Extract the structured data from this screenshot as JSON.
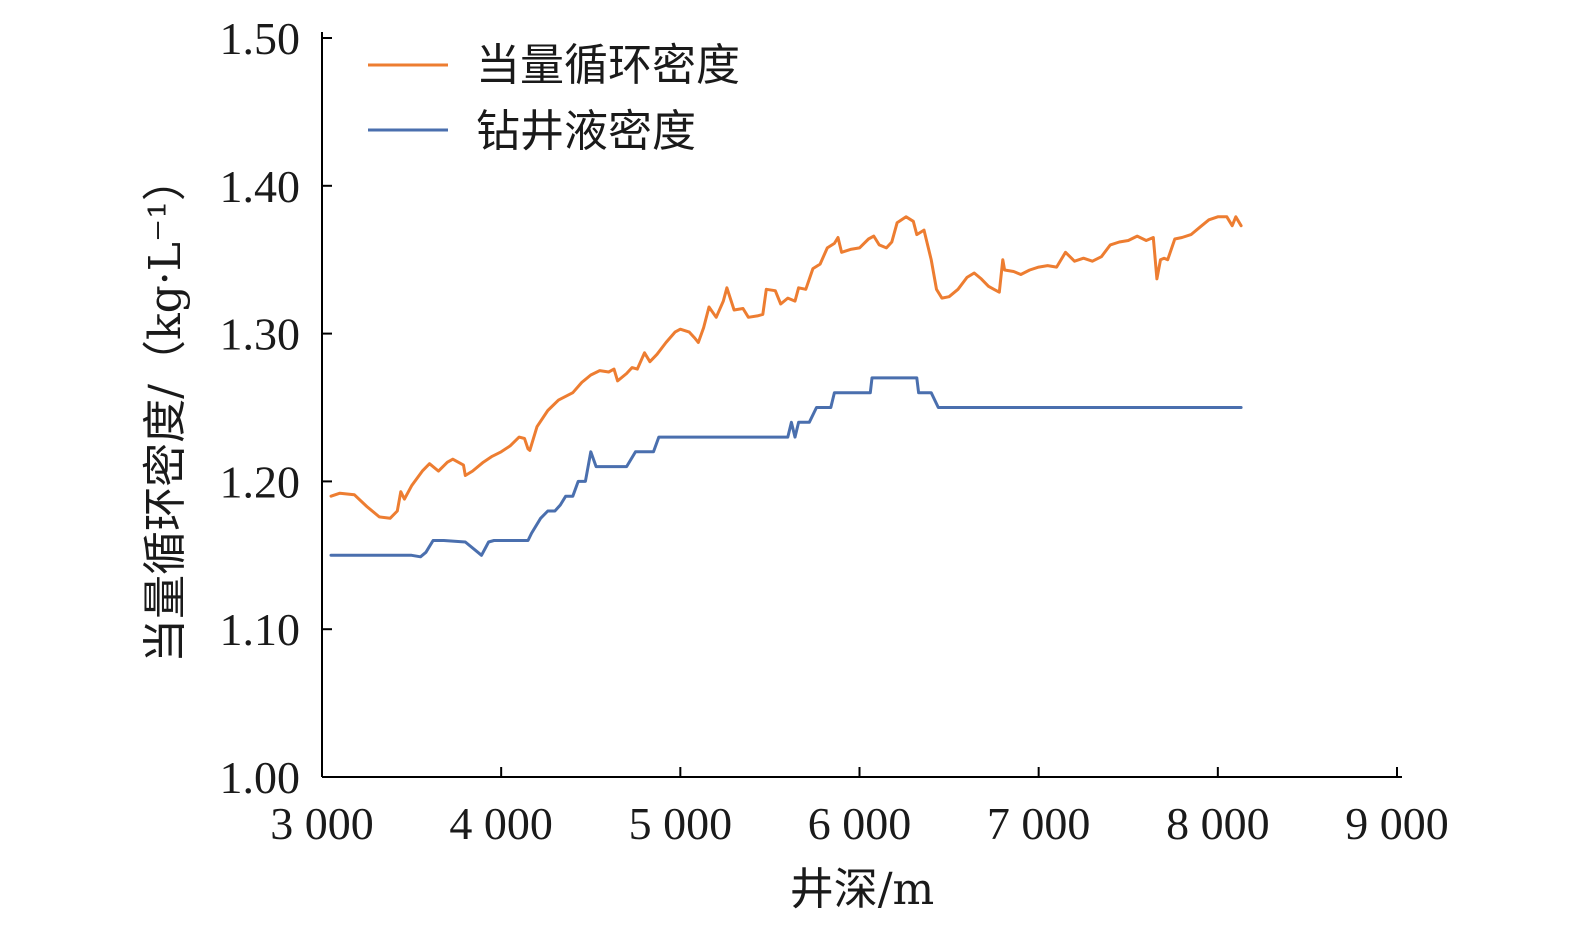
{
  "chart_data": {
    "type": "line",
    "xlabel": "井深/m",
    "ylabel": "当量循环密度/（kg·L⁻¹）",
    "xlim": [
      3000,
      9000
    ],
    "ylim": [
      1.0,
      1.5
    ],
    "x_ticks": [
      3000,
      4000,
      5000,
      6000,
      7000,
      8000,
      9000
    ],
    "x_tick_labels": [
      "3 000",
      "4 000",
      "5 000",
      "6 000",
      "7 000",
      "8 000",
      "9 000"
    ],
    "y_ticks": [
      1.0,
      1.1,
      1.2,
      1.3,
      1.4,
      1.5
    ],
    "y_tick_labels": [
      "1.00",
      "1.10",
      "1.20",
      "1.30",
      "1.40",
      "1.50"
    ],
    "grid": false,
    "legend_position": "top-left",
    "series": [
      {
        "name": "当量循环密度",
        "color": "#ED7D31",
        "points": [
          [
            3050,
            1.19
          ],
          [
            3100,
            1.192
          ],
          [
            3180,
            1.191
          ],
          [
            3250,
            1.183
          ],
          [
            3320,
            1.176
          ],
          [
            3380,
            1.175
          ],
          [
            3420,
            1.18
          ],
          [
            3440,
            1.193
          ],
          [
            3460,
            1.188
          ],
          [
            3500,
            1.197
          ],
          [
            3560,
            1.207
          ],
          [
            3600,
            1.212
          ],
          [
            3650,
            1.207
          ],
          [
            3700,
            1.213
          ],
          [
            3730,
            1.215
          ],
          [
            3790,
            1.211
          ],
          [
            3800,
            1.204
          ],
          [
            3840,
            1.207
          ],
          [
            3900,
            1.213
          ],
          [
            3950,
            1.217
          ],
          [
            4000,
            1.22
          ],
          [
            4050,
            1.224
          ],
          [
            4100,
            1.23
          ],
          [
            4130,
            1.229
          ],
          [
            4150,
            1.222
          ],
          [
            4160,
            1.221
          ],
          [
            4200,
            1.237
          ],
          [
            4260,
            1.248
          ],
          [
            4320,
            1.255
          ],
          [
            4400,
            1.26
          ],
          [
            4450,
            1.267
          ],
          [
            4500,
            1.272
          ],
          [
            4550,
            1.275
          ],
          [
            4600,
            1.274
          ],
          [
            4630,
            1.276
          ],
          [
            4650,
            1.268
          ],
          [
            4700,
            1.273
          ],
          [
            4730,
            1.277
          ],
          [
            4760,
            1.276
          ],
          [
            4800,
            1.287
          ],
          [
            4830,
            1.281
          ],
          [
            4870,
            1.286
          ],
          [
            4920,
            1.294
          ],
          [
            4970,
            1.301
          ],
          [
            5000,
            1.303
          ],
          [
            5050,
            1.301
          ],
          [
            5080,
            1.297
          ],
          [
            5100,
            1.294
          ],
          [
            5130,
            1.304
          ],
          [
            5160,
            1.318
          ],
          [
            5200,
            1.311
          ],
          [
            5240,
            1.322
          ],
          [
            5260,
            1.331
          ],
          [
            5300,
            1.316
          ],
          [
            5350,
            1.317
          ],
          [
            5380,
            1.311
          ],
          [
            5430,
            1.312
          ],
          [
            5460,
            1.313
          ],
          [
            5480,
            1.33
          ],
          [
            5530,
            1.329
          ],
          [
            5560,
            1.32
          ],
          [
            5600,
            1.324
          ],
          [
            5640,
            1.322
          ],
          [
            5660,
            1.331
          ],
          [
            5700,
            1.33
          ],
          [
            5740,
            1.344
          ],
          [
            5780,
            1.347
          ],
          [
            5820,
            1.358
          ],
          [
            5860,
            1.361
          ],
          [
            5880,
            1.365
          ],
          [
            5900,
            1.355
          ],
          [
            5950,
            1.357
          ],
          [
            6000,
            1.358
          ],
          [
            6050,
            1.364
          ],
          [
            6080,
            1.366
          ],
          [
            6110,
            1.36
          ],
          [
            6150,
            1.358
          ],
          [
            6180,
            1.362
          ],
          [
            6210,
            1.375
          ],
          [
            6260,
            1.379
          ],
          [
            6300,
            1.376
          ],
          [
            6320,
            1.367
          ],
          [
            6360,
            1.37
          ],
          [
            6400,
            1.35
          ],
          [
            6430,
            1.33
          ],
          [
            6460,
            1.324
          ],
          [
            6500,
            1.325
          ],
          [
            6550,
            1.33
          ],
          [
            6600,
            1.338
          ],
          [
            6640,
            1.341
          ],
          [
            6680,
            1.337
          ],
          [
            6720,
            1.332
          ],
          [
            6750,
            1.33
          ],
          [
            6780,
            1.328
          ],
          [
            6800,
            1.35
          ],
          [
            6810,
            1.343
          ],
          [
            6860,
            1.342
          ],
          [
            6900,
            1.34
          ],
          [
            6950,
            1.343
          ],
          [
            7000,
            1.345
          ],
          [
            7050,
            1.346
          ],
          [
            7100,
            1.345
          ],
          [
            7150,
            1.355
          ],
          [
            7200,
            1.349
          ],
          [
            7250,
            1.351
          ],
          [
            7300,
            1.349
          ],
          [
            7350,
            1.352
          ],
          [
            7400,
            1.36
          ],
          [
            7450,
            1.362
          ],
          [
            7500,
            1.363
          ],
          [
            7550,
            1.366
          ],
          [
            7600,
            1.363
          ],
          [
            7640,
            1.365
          ],
          [
            7660,
            1.337
          ],
          [
            7680,
            1.35
          ],
          [
            7700,
            1.351
          ],
          [
            7720,
            1.35
          ],
          [
            7760,
            1.364
          ],
          [
            7800,
            1.365
          ],
          [
            7850,
            1.367
          ],
          [
            7900,
            1.372
          ],
          [
            7950,
            1.377
          ],
          [
            8000,
            1.379
          ],
          [
            8050,
            1.379
          ],
          [
            8080,
            1.373
          ],
          [
            8100,
            1.379
          ],
          [
            8130,
            1.373
          ]
        ]
      },
      {
        "name": "钻井液密度",
        "color": "#4A6FAE",
        "points": [
          [
            3050,
            1.15
          ],
          [
            3300,
            1.15
          ],
          [
            3500,
            1.15
          ],
          [
            3550,
            1.149
          ],
          [
            3580,
            1.152
          ],
          [
            3620,
            1.16
          ],
          [
            3680,
            1.16
          ],
          [
            3800,
            1.159
          ],
          [
            3870,
            1.152
          ],
          [
            3890,
            1.15
          ],
          [
            3930,
            1.159
          ],
          [
            3960,
            1.16
          ],
          [
            4000,
            1.16
          ],
          [
            4150,
            1.16
          ],
          [
            4170,
            1.165
          ],
          [
            4220,
            1.175
          ],
          [
            4260,
            1.18
          ],
          [
            4300,
            1.18
          ],
          [
            4330,
            1.184
          ],
          [
            4360,
            1.19
          ],
          [
            4400,
            1.19
          ],
          [
            4430,
            1.2
          ],
          [
            4470,
            1.2
          ],
          [
            4500,
            1.22
          ],
          [
            4530,
            1.21
          ],
          [
            4600,
            1.21
          ],
          [
            4700,
            1.21
          ],
          [
            4750,
            1.22
          ],
          [
            4800,
            1.22
          ],
          [
            4850,
            1.22
          ],
          [
            4880,
            1.23
          ],
          [
            4950,
            1.23
          ],
          [
            5100,
            1.23
          ],
          [
            5600,
            1.23
          ],
          [
            5620,
            1.24
          ],
          [
            5640,
            1.23
          ],
          [
            5660,
            1.24
          ],
          [
            5700,
            1.24
          ],
          [
            5720,
            1.24
          ],
          [
            5760,
            1.25
          ],
          [
            5840,
            1.25
          ],
          [
            5860,
            1.26
          ],
          [
            5900,
            1.26
          ],
          [
            6060,
            1.26
          ],
          [
            6070,
            1.27
          ],
          [
            6150,
            1.27
          ],
          [
            6320,
            1.27
          ],
          [
            6330,
            1.26
          ],
          [
            6400,
            1.26
          ],
          [
            6440,
            1.25
          ],
          [
            6600,
            1.25
          ],
          [
            8000,
            1.25
          ],
          [
            8130,
            1.25
          ]
        ]
      }
    ]
  }
}
